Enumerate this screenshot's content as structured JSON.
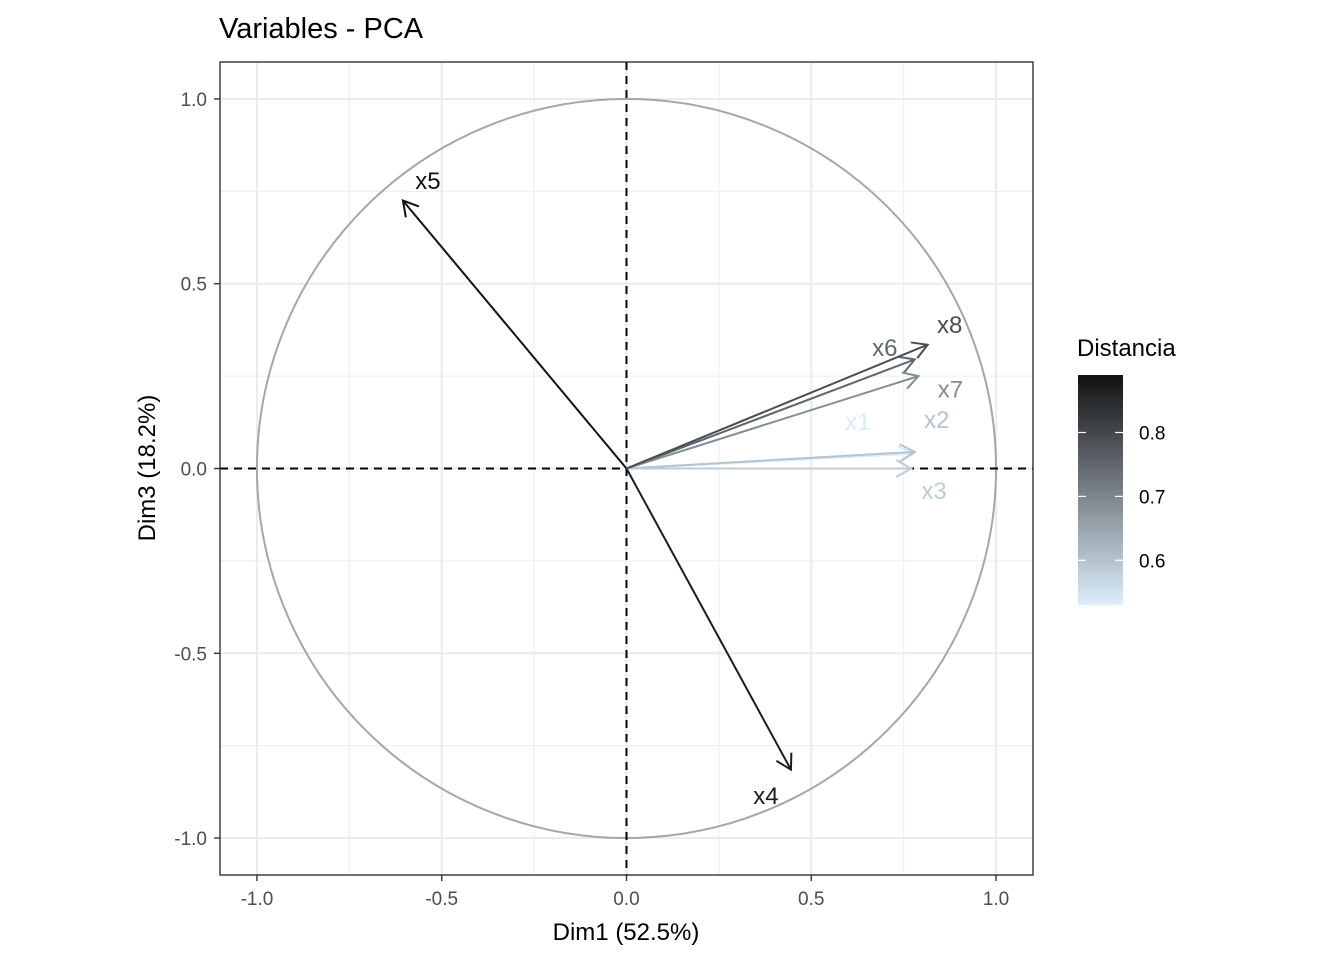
{
  "chart_data": {
    "type": "scatter",
    "subtype": "pca-variable-correlation-circle",
    "title": "Variables - PCA",
    "xlabel": "Dim1 (52.5%)",
    "ylabel": "Dim3 (18.2%)",
    "xlim": [
      -1.1,
      1.1
    ],
    "ylim": [
      -1.1,
      1.1
    ],
    "xticks": [
      -1.0,
      -0.5,
      0.0,
      0.5,
      1.0
    ],
    "xtick_labels": [
      "-1.0",
      "-0.5",
      "0.0",
      "0.5",
      "1.0"
    ],
    "yticks": [
      -1.0,
      -0.5,
      0.0,
      0.5,
      1.0
    ],
    "ytick_labels": [
      "-1.0",
      "-0.5",
      "0.0",
      "0.5",
      "1.0"
    ],
    "grid": true,
    "unit_circle": true,
    "legend": {
      "title": "Distancia",
      "type": "colorbar",
      "placement": "right",
      "range": [
        0.53,
        0.89
      ],
      "ticks": [
        0.6,
        0.7,
        0.8
      ],
      "tick_labels": [
        "0.6",
        "0.7",
        "0.8"
      ],
      "color_low": "#ddeefc",
      "color_high": "#111111"
    },
    "variables": [
      {
        "name": "x1",
        "x": 0.775,
        "y": 0.04,
        "distancia": 0.535
      },
      {
        "name": "x2",
        "x": 0.78,
        "y": 0.045,
        "distancia": 0.6
      },
      {
        "name": "x3",
        "x": 0.77,
        "y": 0.0,
        "distancia": 0.585
      },
      {
        "name": "x4",
        "x": 0.445,
        "y": -0.815,
        "distancia": 0.87
      },
      {
        "name": "x5",
        "x": -0.605,
        "y": 0.725,
        "distancia": 0.89
      },
      {
        "name": "x6",
        "x": 0.78,
        "y": 0.295,
        "distancia": 0.75
      },
      {
        "name": "x7",
        "x": 0.79,
        "y": 0.25,
        "distancia": 0.69
      },
      {
        "name": "x8",
        "x": 0.815,
        "y": 0.335,
        "distancia": 0.79
      }
    ]
  }
}
